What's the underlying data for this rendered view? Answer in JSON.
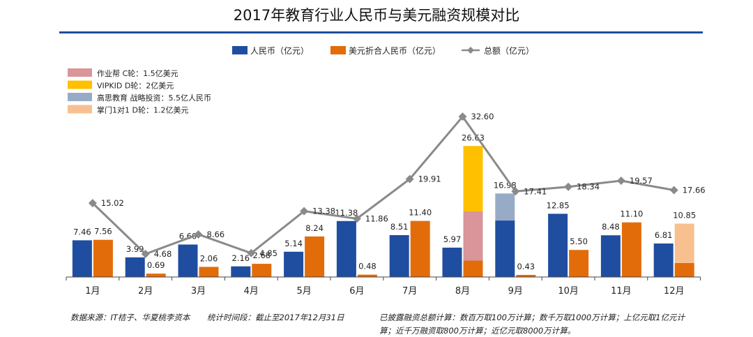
{
  "title": "2017年教育行业人民币与美元融资规模对比",
  "legend": {
    "rmb": "人民币（亿元）",
    "usd": "美元折合人民币（亿元）",
    "total": "总额（亿元）"
  },
  "annotations": [
    {
      "label": "作业帮 C轮：1.5亿美元",
      "color": "#d9959a"
    },
    {
      "label": "VIPKID D轮：2亿美元",
      "color": "#ffc000"
    },
    {
      "label": "高思教育 战略投资：5.5亿人民币",
      "color": "#98abc6"
    },
    {
      "label": "掌门1对1 D轮：1.2亿美元",
      "color": "#f9c08f"
    }
  ],
  "colors": {
    "rmb": "#1f4ea0",
    "usd": "#e36c0a",
    "line": "#8a8a8a"
  },
  "chart_data": {
    "type": "bar",
    "categories": [
      "1月",
      "2月",
      "3月",
      "4月",
      "5月",
      "6月",
      "7月",
      "8月",
      "9月",
      "10月",
      "11月",
      "12月"
    ],
    "series": [
      {
        "name": "人民币（亿元）",
        "values": [
          7.46,
          3.99,
          6.6,
          2.16,
          5.14,
          11.38,
          8.51,
          5.97,
          16.98,
          12.85,
          8.48,
          6.81
        ]
      },
      {
        "name": "美元折合人民币（亿元）",
        "values": [
          7.56,
          0.69,
          2.06,
          2.68,
          8.24,
          0.48,
          11.4,
          26.63,
          0.43,
          5.5,
          11.1,
          10.85
        ]
      },
      {
        "name": "总额（亿元）",
        "type": "line",
        "values": [
          15.02,
          4.68,
          8.66,
          4.85,
          13.38,
          11.86,
          19.91,
          32.6,
          17.41,
          18.34,
          19.57,
          17.66
        ]
      }
    ],
    "highlights": [
      {
        "month": "8月",
        "series": "美元折合人民币（亿元）",
        "label": "作业帮 C轮：1.5亿美元",
        "value": 10.0
      },
      {
        "month": "8月",
        "series": "美元折合人民币（亿元）",
        "label": "VIPKID D轮：2亿美元",
        "value": 13.3
      },
      {
        "month": "9月",
        "series": "人民币（亿元）",
        "label": "高思教育 战略投资：5.5亿人民币",
        "value": 5.5
      },
      {
        "month": "12月",
        "series": "美元折合人民币（亿元）",
        "label": "掌门1对1 D轮：1.2亿美元",
        "value": 8.0
      }
    ],
    "ylim": [
      0,
      35
    ],
    "grid": false,
    "legend_position": "top"
  },
  "footer": {
    "source": "数据来源：IT桔子、华夏桃李资本",
    "period": "统计时间段：截止至2017年12月31日",
    "note_line1": "已披露融资总额计算：数百万取100万计算；数千万取1000万计算；上亿元取1亿元计",
    "note_line2": "算；近千万融资取800万计算；近亿元取8000万计算。"
  }
}
